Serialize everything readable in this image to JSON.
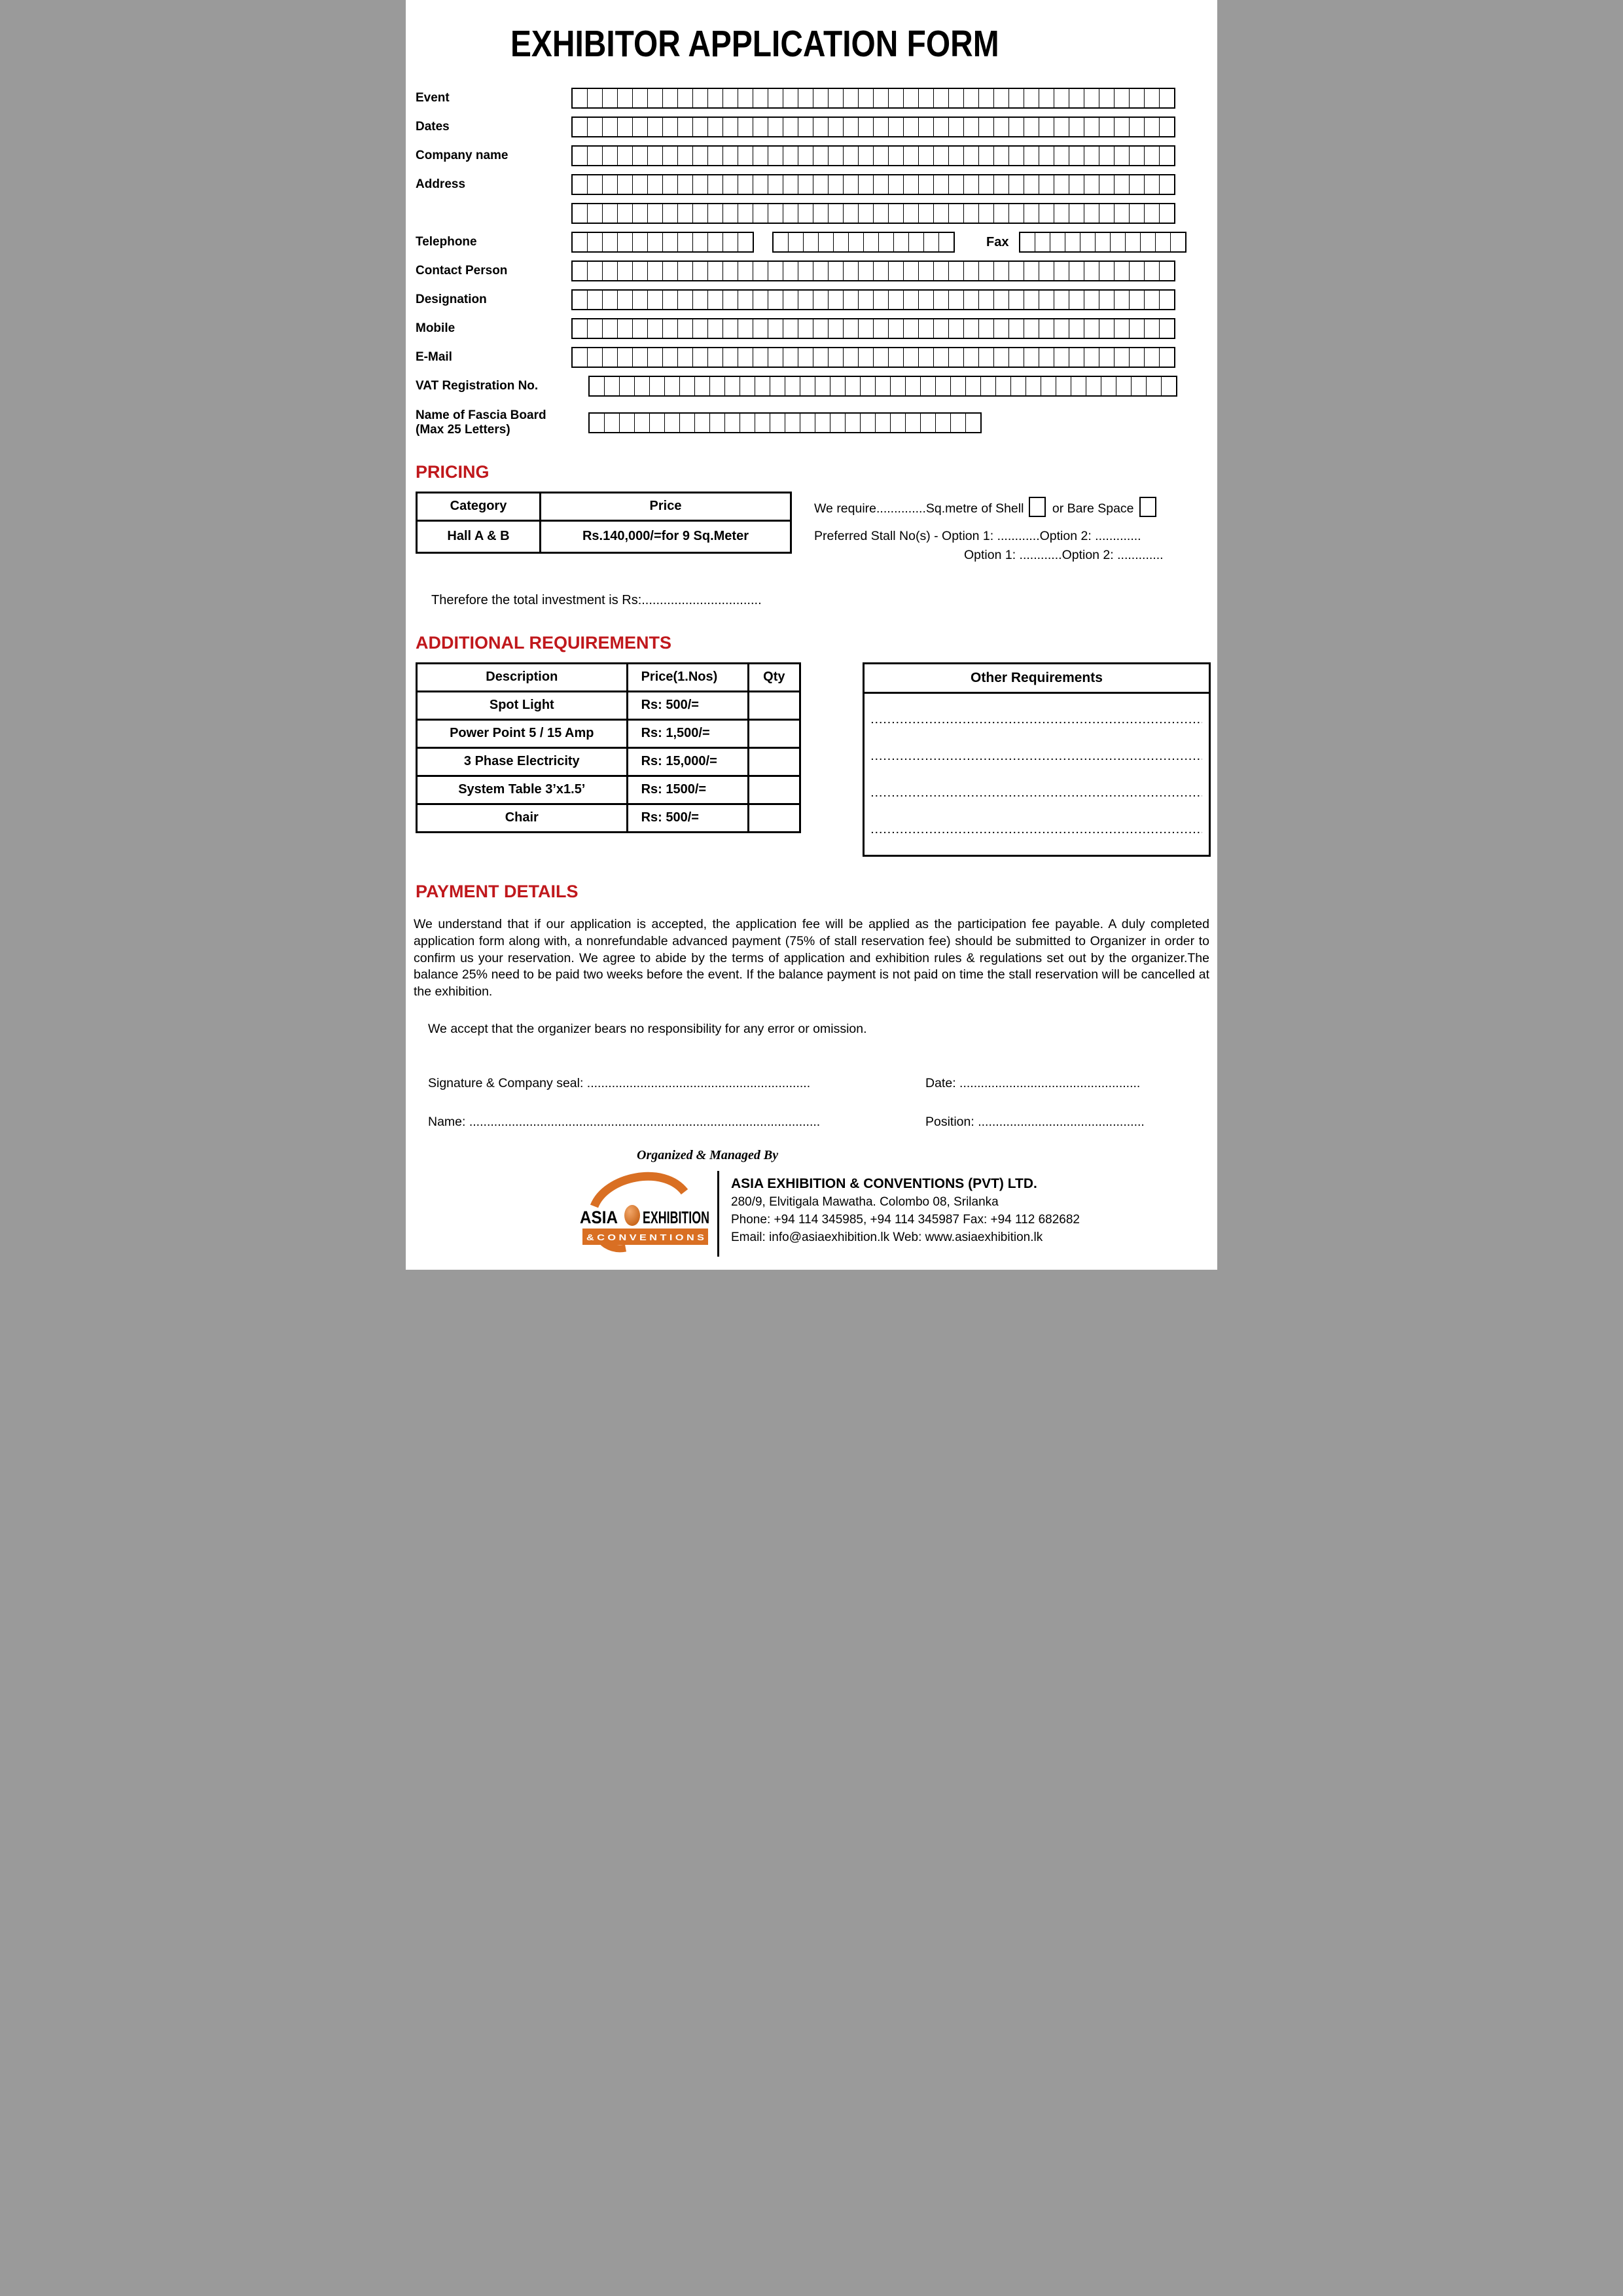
{
  "title": "EXHIBITOR APPLICATION FORM",
  "colors": {
    "heading_red": "#c0181c",
    "logo_orange": "#d96f23"
  },
  "letter_form": {
    "rows": [
      {
        "label": "Event",
        "groups": [
          {
            "boxes": 40
          }
        ]
      },
      {
        "label": "Dates",
        "groups": [
          {
            "boxes": 40
          }
        ]
      },
      {
        "label": "Company name",
        "groups": [
          {
            "boxes": 40
          }
        ]
      },
      {
        "label": "Address",
        "groups": [
          {
            "boxes": 40
          }
        ]
      },
      {
        "label": "",
        "groups": [
          {
            "boxes": 40
          }
        ]
      },
      {
        "label": "Telephone",
        "groups": [
          {
            "boxes": 12
          },
          {
            "boxes": 12
          },
          {
            "label": "Fax"
          },
          {
            "boxes": 11
          }
        ]
      },
      {
        "label": "Contact Person",
        "groups": [
          {
            "boxes": 40
          }
        ]
      },
      {
        "label": "Designation",
        "groups": [
          {
            "boxes": 40
          }
        ]
      },
      {
        "label": "Mobile",
        "groups": [
          {
            "boxes": 40
          }
        ]
      },
      {
        "label": "E-Mail",
        "groups": [
          {
            "boxes": 40
          }
        ]
      },
      {
        "label": "VAT Registration No.",
        "groups": [
          {
            "boxes": 39
          }
        ]
      },
      {
        "label": "Name of Fascia Board",
        "sublabel": "(Max 25 Letters)",
        "groups": [
          {
            "boxes": 26
          }
        ]
      }
    ]
  },
  "pricing": {
    "heading": "PRICING",
    "table": {
      "headers": [
        "Category",
        "Price"
      ],
      "rows": [
        [
          "Hall A & B",
          "Rs.140,000/=for 9 Sq.Meter"
        ]
      ]
    },
    "require_pre": "We require..............Sq.metre of Shell",
    "require_or": "or Bare Space",
    "preferred1": "Preferred Stall No(s) - Option 1: ............Option 2: .............",
    "preferred2": "Option 1: ............Option 2: .............",
    "total_line": "Therefore the total investment is Rs:................................."
  },
  "additional": {
    "heading": "ADDITIONAL REQUIREMENTS",
    "table": {
      "headers": [
        "Description",
        "Price(1.Nos)",
        "Qty"
      ],
      "rows": [
        [
          "Spot Light",
          "Rs: 500/=",
          ""
        ],
        [
          "Power Point 5 / 15 Amp",
          "Rs: 1,500/=",
          ""
        ],
        [
          "3 Phase Electricity",
          "Rs: 15,000/=",
          ""
        ],
        [
          "System Table 3’x1.5’",
          "Rs: 1500/=",
          ""
        ],
        [
          "Chair",
          "Rs: 500/=",
          ""
        ]
      ]
    },
    "other_box": {
      "title": "Other Requirements",
      "line_count": 4,
      "line_dots": "......................................................................................................"
    }
  },
  "payment": {
    "heading": "PAYMENT DETAILS",
    "body": "We understand that if our application is accepted, the application fee will be applied as the participation fee payable. A duly completed application form along with, a nonrefundable advanced payment (75% of stall reservation fee) should be submitted to Organizer in order to confirm us your reservation. We agree to abide by the terms of application and exhibition rules & regulations set out by the organizer.The balance 25% need to be paid two weeks before the event. If the balance payment is not paid on time the stall reservation will be cancelled at the exhibition.",
    "accept_line": "We accept that the organizer bears no responsibility for any error or omission."
  },
  "signature": {
    "sig": "Signature & Company seal: ...............................................................",
    "date": "Date: ...................................................",
    "name": "Name: ...................................................................................................",
    "position": "Position: ..............................................."
  },
  "footer": {
    "organized_by": "Organized & Managed By",
    "logo": {
      "asia": "ASIA",
      "exhibition": "EXHIBITION",
      "conventions": "& C O N V E N T I O N S"
    },
    "company": "ASIA EXHIBITION & CONVENTIONS (PVT) LTD.",
    "address": "280/9, Elvitigala Mawatha. Colombo 08, Srilanka",
    "phone": "Phone: +94 114 345985, +94 114 345987 Fax: +94 112 682682",
    "email": "Email: info@asiaexhibition.lk  Web: www.asiaexhibition.lk"
  }
}
